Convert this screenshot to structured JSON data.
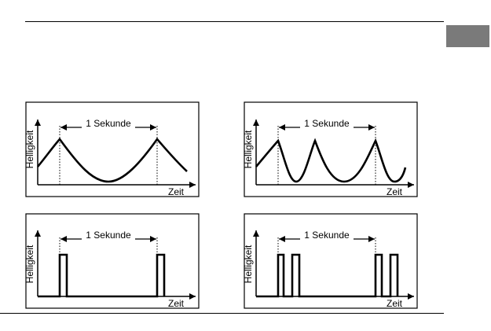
{
  "labels": {
    "period": "1 Sekunde",
    "x_axis": "Zeit",
    "y_axis": "Helligkeit"
  },
  "colors": {
    "line": "#000000",
    "tab": "#7a7a7a",
    "background": "#ffffff"
  },
  "diagrams": [
    {
      "id": "slow-pulse",
      "waveform": "smooth",
      "pulses_per_second": 1
    },
    {
      "id": "fast-pulse",
      "waveform": "smooth",
      "pulses_per_second": 2
    },
    {
      "id": "single-flash",
      "waveform": "square",
      "flashes_per_second": 1
    },
    {
      "id": "double-flash",
      "waveform": "square",
      "flashes_per_second": 2
    }
  ]
}
